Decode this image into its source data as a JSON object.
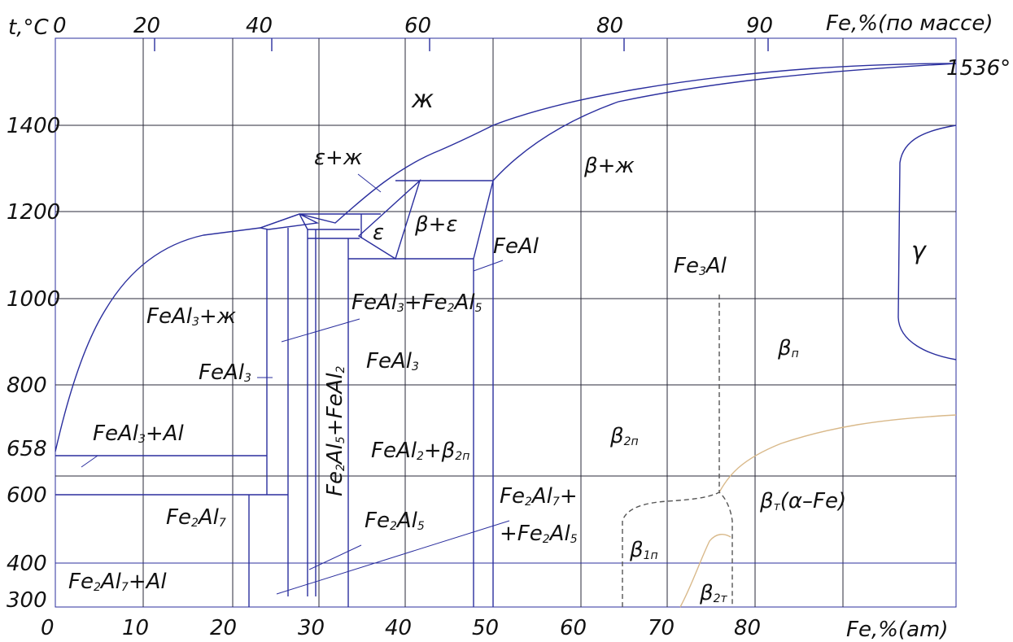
{
  "axes": {
    "y_title": "t,°C",
    "top_title": "Fe,%(по массе)",
    "bottom_title": "Fe,%(am)",
    "melting_point_label": "1536°",
    "y_ticks": [
      "1400",
      "1200",
      "1000",
      "800",
      "658",
      "600",
      "400",
      "300"
    ],
    "top_ticks": [
      "0",
      "20",
      "40",
      "60",
      "80",
      "90"
    ],
    "bottom_ticks": [
      "0",
      "10",
      "20",
      "30",
      "40",
      "50",
      "60",
      "70",
      "80"
    ]
  },
  "phases": {
    "liquid": "ж",
    "eps_liq": "ε+ж",
    "eps": "ε",
    "beta_eps": "β+ε",
    "beta_liq": "β+ж",
    "feal": "FeAl",
    "gamma": "γ",
    "fe3al": {
      "a": "Fe",
      "sub": "3",
      "b": "Al"
    },
    "feal3_liq": {
      "a": "FeAl",
      "sub": "3",
      "b": "+ж"
    },
    "feal3_fe2al5": {
      "a": "FeAl",
      "s1": "3",
      "b": "+Fe",
      "s2": "2",
      "c": "Al",
      "s3": "5"
    },
    "feal3_left": {
      "a": "FeAl",
      "sub": "3"
    },
    "feal3_center": {
      "a": "FeAl",
      "sub": "3"
    },
    "fe2al5_feal2": {
      "a": "Fe",
      "s1": "2",
      "b": "Al",
      "s2": "5",
      "c": "+FeAl",
      "s3": "2"
    },
    "feal3_al": {
      "a": "FeAl",
      "sub": "3",
      "b": "+Al"
    },
    "feal2_beta2n": {
      "a": "FeAl",
      "s1": "2",
      "b": "+β",
      "s2": "2п"
    },
    "beta2n": {
      "a": "β",
      "sub": "2п"
    },
    "beta_n": {
      "a": "β",
      "sub": "п"
    },
    "fe2al7": {
      "a": "Fe",
      "s1": "2",
      "b": "Al",
      "s2": "7"
    },
    "fe2al5": {
      "a": "Fe",
      "s1": "2",
      "b": "Al",
      "s2": "5"
    },
    "fe2al7_fe2al5_line1": {
      "a": "Fe",
      "s1": "2",
      "b": "Al",
      "s2": "7",
      "c": "+"
    },
    "fe2al7_fe2al5_line2": {
      "a": "+Fe",
      "s1": "2",
      "b": "Al",
      "s2": "5"
    },
    "beta_t_alpha": {
      "a": "β",
      "sub": "т",
      "b": "(α–Fe)"
    },
    "fe2al7_al": {
      "a": "Fe",
      "s1": "2",
      "b": "Al",
      "s2": "7",
      "c": "+Al"
    },
    "beta1n": {
      "a": "β",
      "sub": "1п"
    },
    "beta2t": {
      "a": "β",
      "sub": "2т"
    }
  },
  "colors": {
    "line": "#2b2f9e",
    "grid": "#2a2a3a",
    "ordering": "#d9b98a",
    "dashed": "#555555"
  }
}
